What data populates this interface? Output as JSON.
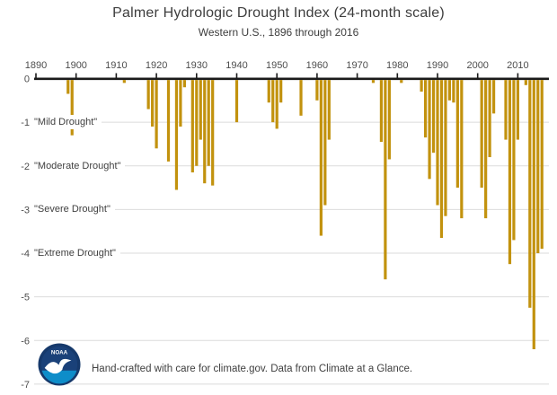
{
  "header": {
    "title": "Palmer Hydrologic Drought Index (24-month scale)",
    "subtitle": "Western U.S., 1896 through 2016"
  },
  "chart_data": {
    "type": "bar",
    "title": "Palmer Hydrologic Drought Index (24-month scale)",
    "subtitle": "Western U.S., 1896 through 2016",
    "xlabel": "",
    "ylabel": "",
    "x_ticks": [
      1890,
      1900,
      1910,
      1920,
      1930,
      1940,
      1950,
      1960,
      1970,
      1980,
      1990,
      2000,
      2010
    ],
    "y_ticks": [
      0,
      -1,
      -2,
      -3,
      -4,
      -5,
      -6,
      -7
    ],
    "xlim": [
      1890,
      2017
    ],
    "ylim": [
      -7,
      0
    ],
    "grid": true,
    "legend": false,
    "zones": [
      {
        "value": -1,
        "label": "\"Mild Drought\""
      },
      {
        "value": -2,
        "label": "\"Moderate Drought\""
      },
      {
        "value": -3,
        "label": "\"Severe Drought\""
      },
      {
        "value": -4,
        "label": "\"Extreme Drought\""
      }
    ],
    "bar_color": "#C2920E",
    "grid_color": "#DBDBDB",
    "axis_color": "#1A1A1A",
    "tick_label_color": "#4D4D4D",
    "bars": [
      {
        "year": 1898,
        "value": -0.35
      },
      {
        "year": 1899,
        "value": -1.3
      },
      {
        "year": 1912,
        "value": -0.1
      },
      {
        "year": 1918,
        "value": -0.7
      },
      {
        "year": 1919,
        "value": -1.1
      },
      {
        "year": 1920,
        "value": -1.6
      },
      {
        "year": 1923,
        "value": -1.9
      },
      {
        "year": 1925,
        "value": -2.55
      },
      {
        "year": 1926,
        "value": -1.1
      },
      {
        "year": 1927,
        "value": -0.2
      },
      {
        "year": 1929,
        "value": -2.15
      },
      {
        "year": 1930,
        "value": -2.0
      },
      {
        "year": 1931,
        "value": -1.4
      },
      {
        "year": 1932,
        "value": -2.4
      },
      {
        "year": 1933,
        "value": -2.0
      },
      {
        "year": 1934,
        "value": -2.45
      },
      {
        "year": 1940,
        "value": -1.0
      },
      {
        "year": 1948,
        "value": -0.55
      },
      {
        "year": 1949,
        "value": -1.0
      },
      {
        "year": 1950,
        "value": -1.15
      },
      {
        "year": 1951,
        "value": -0.55
      },
      {
        "year": 1956,
        "value": -0.85
      },
      {
        "year": 1960,
        "value": -0.5
      },
      {
        "year": 1961,
        "value": -3.6
      },
      {
        "year": 1962,
        "value": -2.9
      },
      {
        "year": 1963,
        "value": -1.4
      },
      {
        "year": 1974,
        "value": -0.1
      },
      {
        "year": 1976,
        "value": -1.45
      },
      {
        "year": 1977,
        "value": -4.6
      },
      {
        "year": 1978,
        "value": -1.85
      },
      {
        "year": 1981,
        "value": -0.1
      },
      {
        "year": 1986,
        "value": -0.3
      },
      {
        "year": 1987,
        "value": -1.35
      },
      {
        "year": 1988,
        "value": -2.3
      },
      {
        "year": 1989,
        "value": -1.7
      },
      {
        "year": 1990,
        "value": -2.9
      },
      {
        "year": 1991,
        "value": -3.65
      },
      {
        "year": 1992,
        "value": -3.15
      },
      {
        "year": 1993,
        "value": -0.5
      },
      {
        "year": 1994,
        "value": -0.55
      },
      {
        "year": 1995,
        "value": -2.5
      },
      {
        "year": 1996,
        "value": -3.2
      },
      {
        "year": 2001,
        "value": -2.5
      },
      {
        "year": 2002,
        "value": -3.2
      },
      {
        "year": 2003,
        "value": -1.8
      },
      {
        "year": 2004,
        "value": -0.8
      },
      {
        "year": 2007,
        "value": -1.4
      },
      {
        "year": 2008,
        "value": -4.25
      },
      {
        "year": 2009,
        "value": -3.7
      },
      {
        "year": 2010,
        "value": -1.4
      },
      {
        "year": 2012,
        "value": -0.15
      },
      {
        "year": 2013,
        "value": -5.25
      },
      {
        "year": 2014,
        "value": -6.2
      },
      {
        "year": 2015,
        "value": -4.0
      },
      {
        "year": 2016,
        "value": -3.9
      }
    ]
  },
  "footer": {
    "logo_text": "NOAA",
    "credit": "Hand-crafted with care for climate.gov. Data from Climate at a Glance."
  }
}
